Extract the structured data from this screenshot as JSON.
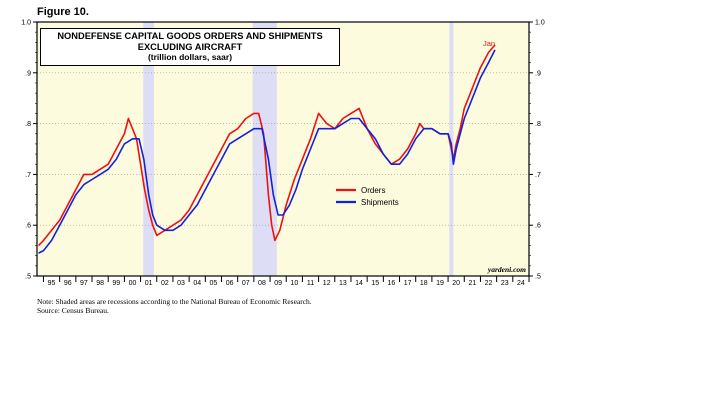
{
  "figure_label": "Figure 10.",
  "notes": {
    "line1": "Note: Shaded areas are recessions according to the National Bureau of Economic Research.",
    "line2": "Source: Census Bureau."
  },
  "colors": {
    "plot_bg": "#FDFBDD",
    "recession": "#DDDDF5",
    "orders": "#EE1111",
    "shipments": "#1122DD"
  },
  "chart_data": {
    "type": "line",
    "title": "NONDEFENSE CAPITAL GOODS ORDERS AND SHIPMENTS",
    "title_line2": "EXCLUDING AIRCRAFT",
    "subtitle": "(trillion dollars, saar)",
    "watermark": "yardeni.com",
    "annotation": "Jan",
    "ylim": [
      0.5,
      1.0
    ],
    "yticks": [
      ".5",
      ".6",
      ".7",
      ".8",
      ".9",
      "1.0"
    ],
    "xlim": [
      1994.6,
      2025.0
    ],
    "xtick_labels": [
      "95",
      "96",
      "97",
      "98",
      "99",
      "00",
      "01",
      "02",
      "03",
      "04",
      "05",
      "06",
      "07",
      "08",
      "09",
      "10",
      "11",
      "12",
      "13",
      "14",
      "15",
      "16",
      "17",
      "18",
      "19",
      "20",
      "21",
      "22",
      "23",
      "24"
    ],
    "recessions": [
      [
        2001.17,
        2001.83
      ],
      [
        2007.92,
        2009.42
      ],
      [
        2020.08,
        2020.33
      ]
    ],
    "legend": {
      "placement": "center-right"
    },
    "series": [
      {
        "name": "Orders",
        "points": [
          [
            1994.7,
            0.56
          ],
          [
            1995.0,
            0.57
          ],
          [
            1995.5,
            0.59
          ],
          [
            1996.0,
            0.61
          ],
          [
            1996.5,
            0.64
          ],
          [
            1997.0,
            0.67
          ],
          [
            1997.5,
            0.7
          ],
          [
            1998.0,
            0.7
          ],
          [
            1998.5,
            0.71
          ],
          [
            1999.0,
            0.72
          ],
          [
            1999.5,
            0.75
          ],
          [
            2000.0,
            0.78
          ],
          [
            2000.25,
            0.81
          ],
          [
            2000.5,
            0.79
          ],
          [
            2000.75,
            0.77
          ],
          [
            2001.0,
            0.72
          ],
          [
            2001.25,
            0.67
          ],
          [
            2001.5,
            0.63
          ],
          [
            2001.75,
            0.6
          ],
          [
            2002.0,
            0.58
          ],
          [
            2002.5,
            0.59
          ],
          [
            2003.0,
            0.6
          ],
          [
            2003.5,
            0.61
          ],
          [
            2004.0,
            0.63
          ],
          [
            2004.5,
            0.66
          ],
          [
            2005.0,
            0.69
          ],
          [
            2005.5,
            0.72
          ],
          [
            2006.0,
            0.75
          ],
          [
            2006.5,
            0.78
          ],
          [
            2007.0,
            0.79
          ],
          [
            2007.5,
            0.81
          ],
          [
            2008.0,
            0.82
          ],
          [
            2008.3,
            0.82
          ],
          [
            2008.6,
            0.78
          ],
          [
            2008.9,
            0.66
          ],
          [
            2009.1,
            0.6
          ],
          [
            2009.3,
            0.57
          ],
          [
            2009.6,
            0.59
          ],
          [
            2010.0,
            0.64
          ],
          [
            2010.5,
            0.69
          ],
          [
            2011.0,
            0.73
          ],
          [
            2011.5,
            0.77
          ],
          [
            2012.0,
            0.82
          ],
          [
            2012.5,
            0.8
          ],
          [
            2013.0,
            0.79
          ],
          [
            2013.5,
            0.81
          ],
          [
            2014.0,
            0.82
          ],
          [
            2014.5,
            0.83
          ],
          [
            2015.0,
            0.79
          ],
          [
            2015.5,
            0.76
          ],
          [
            2016.0,
            0.74
          ],
          [
            2016.5,
            0.72
          ],
          [
            2017.0,
            0.73
          ],
          [
            2017.5,
            0.75
          ],
          [
            2018.0,
            0.78
          ],
          [
            2018.25,
            0.8
          ],
          [
            2018.5,
            0.79
          ],
          [
            2019.0,
            0.79
          ],
          [
            2019.5,
            0.78
          ],
          [
            2020.0,
            0.78
          ],
          [
            2020.2,
            0.75
          ],
          [
            2020.33,
            0.73
          ],
          [
            2020.5,
            0.76
          ],
          [
            2020.75,
            0.79
          ],
          [
            2021.0,
            0.83
          ],
          [
            2021.5,
            0.87
          ],
          [
            2022.0,
            0.91
          ],
          [
            2022.5,
            0.94
          ],
          [
            2022.9,
            0.955
          ]
        ]
      },
      {
        "name": "Shipments",
        "points": [
          [
            1994.7,
            0.545
          ],
          [
            1995.0,
            0.55
          ],
          [
            1995.5,
            0.57
          ],
          [
            1996.0,
            0.6
          ],
          [
            1996.5,
            0.63
          ],
          [
            1997.0,
            0.66
          ],
          [
            1997.5,
            0.68
          ],
          [
            1998.0,
            0.69
          ],
          [
            1998.5,
            0.7
          ],
          [
            1999.0,
            0.71
          ],
          [
            1999.5,
            0.73
          ],
          [
            2000.0,
            0.76
          ],
          [
            2000.5,
            0.77
          ],
          [
            2000.9,
            0.77
          ],
          [
            2001.2,
            0.73
          ],
          [
            2001.5,
            0.66
          ],
          [
            2001.75,
            0.62
          ],
          [
            2002.0,
            0.6
          ],
          [
            2002.5,
            0.59
          ],
          [
            2003.0,
            0.59
          ],
          [
            2003.5,
            0.6
          ],
          [
            2004.0,
            0.62
          ],
          [
            2004.5,
            0.64
          ],
          [
            2005.0,
            0.67
          ],
          [
            2005.5,
            0.7
          ],
          [
            2006.0,
            0.73
          ],
          [
            2006.5,
            0.76
          ],
          [
            2007.0,
            0.77
          ],
          [
            2007.5,
            0.78
          ],
          [
            2008.0,
            0.79
          ],
          [
            2008.5,
            0.79
          ],
          [
            2008.9,
            0.73
          ],
          [
            2009.2,
            0.66
          ],
          [
            2009.5,
            0.62
          ],
          [
            2009.8,
            0.62
          ],
          [
            2010.2,
            0.64
          ],
          [
            2010.6,
            0.67
          ],
          [
            2011.0,
            0.71
          ],
          [
            2011.5,
            0.75
          ],
          [
            2012.0,
            0.79
          ],
          [
            2012.5,
            0.79
          ],
          [
            2013.0,
            0.79
          ],
          [
            2013.5,
            0.8
          ],
          [
            2014.0,
            0.81
          ],
          [
            2014.5,
            0.81
          ],
          [
            2015.0,
            0.79
          ],
          [
            2015.5,
            0.77
          ],
          [
            2016.0,
            0.74
          ],
          [
            2016.5,
            0.72
          ],
          [
            2017.0,
            0.72
          ],
          [
            2017.5,
            0.74
          ],
          [
            2018.0,
            0.77
          ],
          [
            2018.5,
            0.79
          ],
          [
            2019.0,
            0.79
          ],
          [
            2019.5,
            0.78
          ],
          [
            2020.0,
            0.78
          ],
          [
            2020.2,
            0.76
          ],
          [
            2020.33,
            0.72
          ],
          [
            2020.5,
            0.75
          ],
          [
            2020.75,
            0.78
          ],
          [
            2021.0,
            0.81
          ],
          [
            2021.5,
            0.85
          ],
          [
            2022.0,
            0.89
          ],
          [
            2022.5,
            0.92
          ],
          [
            2022.9,
            0.945
          ]
        ]
      }
    ]
  }
}
